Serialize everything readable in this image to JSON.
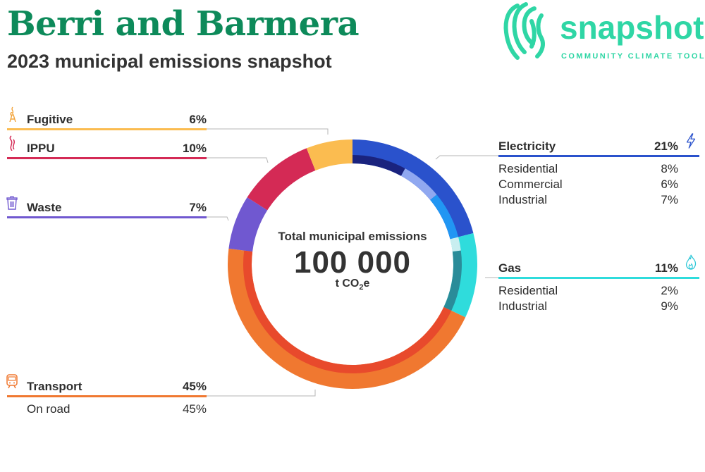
{
  "header": {
    "title": "Berri and Barmera",
    "subtitle": "2023 municipal emissions snapshot"
  },
  "logo": {
    "word": "snapshot",
    "tagline": "COMMUNITY CLIMATE TOOL"
  },
  "center": {
    "label": "Total municipal emissions",
    "value": "100 000",
    "unit_prefix": "t CO",
    "unit_sub": "2",
    "unit_suffix": "e"
  },
  "chart_data": {
    "type": "pie",
    "total": 100000,
    "unit": "t CO2e",
    "categories": [
      {
        "name": "Electricity",
        "pct": "21%",
        "value": 21,
        "color": "#2a52cc",
        "subs": [
          {
            "name": "Residential",
            "pct": "8%",
            "value": 8,
            "color": "#1a237e"
          },
          {
            "name": "Commercial",
            "pct": "6%",
            "value": 6,
            "color": "#90a8f0"
          },
          {
            "name": "Industrial",
            "pct": "7%",
            "value": 7,
            "color": "#2196f3"
          }
        ]
      },
      {
        "name": "Gas",
        "pct": "11%",
        "value": 11,
        "color": "#2fdcdc",
        "subs": [
          {
            "name": "Residential",
            "pct": "2%",
            "value": 2,
            "color": "#c8eef0"
          },
          {
            "name": "Industrial",
            "pct": "9%",
            "value": 9,
            "color": "#2a8c99"
          }
        ]
      },
      {
        "name": "Transport",
        "pct": "45%",
        "value": 45,
        "color": "#f07830",
        "subs": [
          {
            "name": "On road",
            "pct": "45%",
            "value": 45,
            "color": "#e84a2c"
          }
        ]
      },
      {
        "name": "Waste",
        "pct": "7%",
        "value": 7,
        "color": "#7058d0",
        "subs": []
      },
      {
        "name": "IPPU",
        "pct": "10%",
        "value": 10,
        "color": "#d42a55",
        "subs": []
      },
      {
        "name": "Fugitive",
        "pct": "6%",
        "value": 6,
        "color": "#fbbc50",
        "subs": []
      }
    ]
  },
  "icons": {
    "electricity": "lightning-icon",
    "gas": "flame-icon",
    "transport": "train-icon",
    "waste": "bin-icon",
    "ippu": "smoke-icon",
    "fugitive": "gas-flare-icon"
  }
}
